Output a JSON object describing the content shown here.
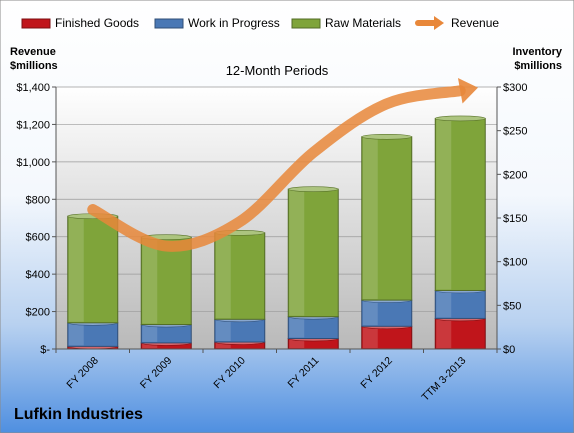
{
  "chart_data": {
    "type": "bar",
    "stacked": true,
    "title": "12-Month Periods",
    "company": "Lufkin Industries",
    "categories": [
      "FY 2008",
      "FY 2009",
      "FY 2010",
      "FY 2011",
      "FY 2012",
      "TTM 3-2013"
    ],
    "left_axis": {
      "label_line1": "Revenue",
      "label_line2": "$millions",
      "range": [
        0,
        1400
      ],
      "ticks": [
        0,
        200,
        400,
        600,
        800,
        1000,
        1200,
        1400
      ],
      "tick_labels": [
        "$-",
        "$200",
        "$400",
        "$600",
        "$800",
        "$1,000",
        "$1,200",
        "$1,400"
      ]
    },
    "right_axis": {
      "label_line1": "Inventory",
      "label_line2": "$millions",
      "range": [
        0,
        300
      ],
      "ticks": [
        0,
        50,
        100,
        150,
        200,
        250,
        300
      ],
      "tick_labels": [
        "$0",
        "$50",
        "$100",
        "$150",
        "$200",
        "$250",
        "$300"
      ]
    },
    "series": [
      {
        "name": "Finished Goods",
        "axis": "right",
        "color": "#c0151b",
        "values": [
          3,
          7,
          8,
          12,
          26,
          35
        ]
      },
      {
        "name": "Work in Progress",
        "axis": "right",
        "color": "#4a78b5",
        "values": [
          27,
          21,
          26,
          25,
          30,
          32
        ]
      },
      {
        "name": "Raw Materials",
        "axis": "right",
        "color": "#7fa43a",
        "values": [
          122,
          100,
          99,
          146,
          187,
          197
        ]
      },
      {
        "name": "Revenue",
        "axis": "left",
        "type": "line",
        "color": "#e8873a",
        "values": [
          745,
          550,
          680,
          1050,
          1310,
          1380
        ]
      }
    ],
    "legend_position": "top",
    "grid": true
  }
}
